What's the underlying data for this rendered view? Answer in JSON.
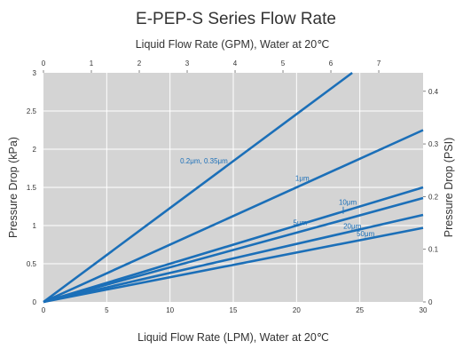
{
  "chart_data": {
    "type": "line",
    "title": "E-PEP-S Series Flow Rate",
    "xlabel": "Liquid Flow Rate (LPM), Water at 20℃",
    "x2label": "Liquid Flow Rate (GPM), Water at 20℃",
    "ylabel": "Pressure Drop (kPa)",
    "y2label": "Pressure Drop (PSI)",
    "xlim": [
      0,
      30
    ],
    "ylim": [
      0,
      3
    ],
    "x2lim": [
      0,
      7.925
    ],
    "y2lim": [
      0,
      0.435
    ],
    "x_ticks": [
      "0",
      "5",
      "10",
      "15",
      "20",
      "25",
      "30"
    ],
    "y_ticks": [
      "0",
      "0.5",
      "1",
      "1.5",
      "2",
      "2.5",
      "3"
    ],
    "x2_ticks": [
      "0",
      "1",
      "2",
      "3",
      "4",
      "5",
      "6",
      "7"
    ],
    "y2_ticks": [
      "0",
      "0.1",
      "0.2",
      "0.3",
      "0.4"
    ],
    "grid": true,
    "line_color": "#1b6fb8",
    "plot_background": "#d4d4d4",
    "series": [
      {
        "name": "0.2μm, 0.35μm",
        "x": [
          0,
          24.4
        ],
        "y": [
          0,
          3.0
        ]
      },
      {
        "name": "1μm",
        "x": [
          0,
          30
        ],
        "y": [
          0,
          2.25
        ]
      },
      {
        "name": "10μm",
        "x": [
          0,
          30
        ],
        "y": [
          0,
          1.5
        ]
      },
      {
        "name": "5μm",
        "x": [
          0,
          30
        ],
        "y": [
          0,
          1.36
        ]
      },
      {
        "name": "20μm",
        "x": [
          0,
          30
        ],
        "y": [
          0,
          1.14
        ]
      },
      {
        "name": "50μm",
        "x": [
          0,
          30
        ],
        "y": [
          0,
          0.97
        ]
      }
    ]
  }
}
